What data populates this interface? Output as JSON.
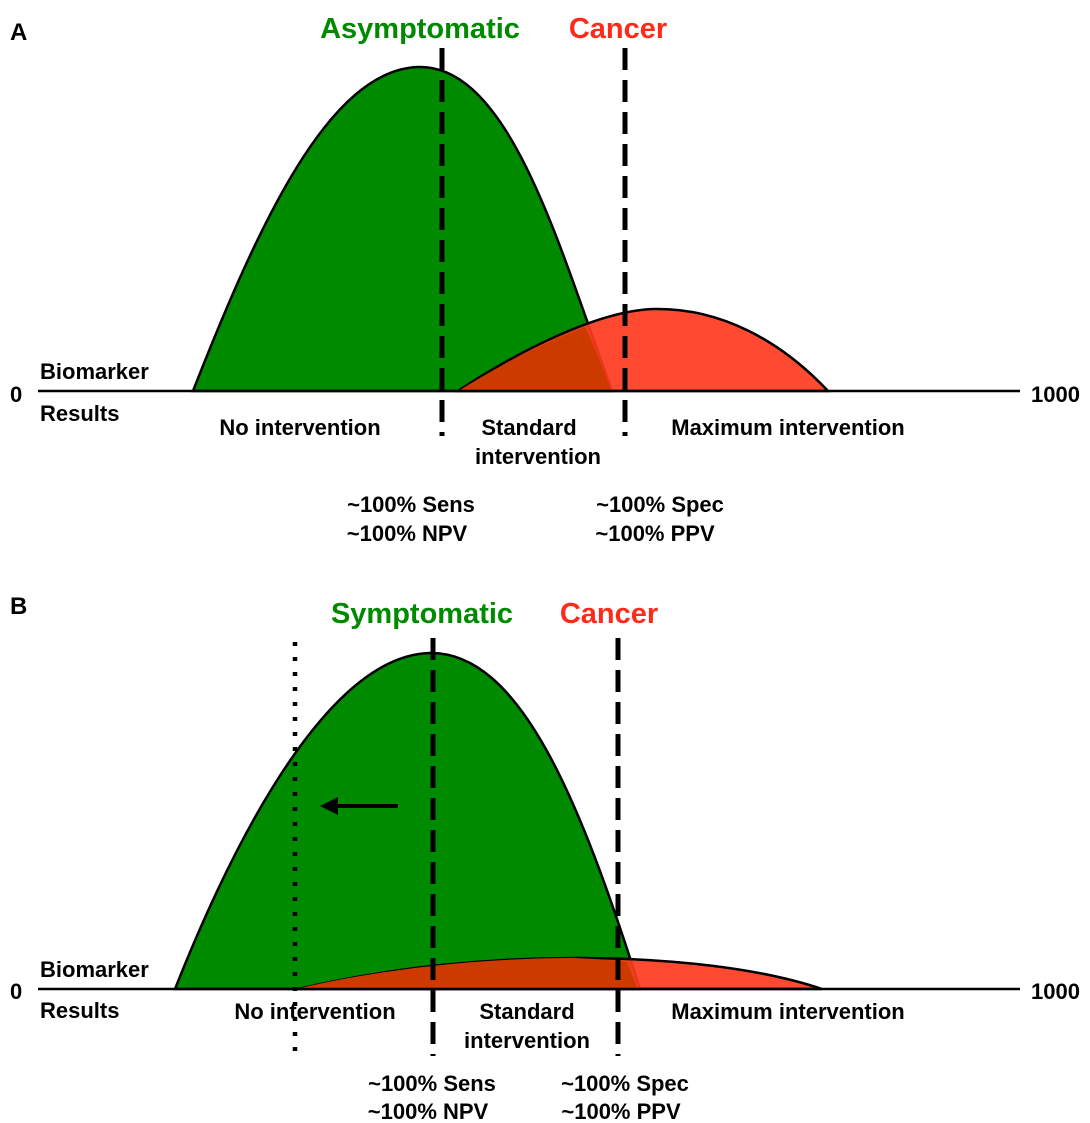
{
  "panel_a": {
    "letter": "A",
    "population_label": "Asymptomatic",
    "cancer_label": "Cancer",
    "axis_min": "0",
    "axis_max": "1000",
    "axis_label_top": "Biomarker",
    "axis_label_bottom": "Results",
    "zones": {
      "no": "No intervention",
      "standard_line1": "Standard",
      "standard_line2": "intervention",
      "maximum": "Maximum intervention"
    },
    "metrics_left": [
      "~100% Sens",
      "~100% NPV"
    ],
    "metrics_right": [
      "~100% Spec",
      "~100% PPV"
    ]
  },
  "panel_b": {
    "letter": "B",
    "population_label": "Symptomatic",
    "cancer_label": "Cancer",
    "axis_min": "0",
    "axis_max": "1000",
    "axis_label_top": "Biomarker",
    "axis_label_bottom": "Results",
    "zones": {
      "no": "No intervention",
      "standard_line1": "Standard",
      "standard_line2": "intervention",
      "maximum": "Maximum intervention"
    },
    "metrics_left": [
      "~100% Sens",
      "~100% NPV"
    ],
    "metrics_right": [
      "~100% Spec",
      "~100% PPV"
    ]
  },
  "colors": {
    "healthy_population": "#008a00",
    "cancer_population": "#ff3b1f",
    "overlap": "#cc3a00",
    "population_label": "#008a00",
    "cancer_label": "#ff2a1a"
  }
}
